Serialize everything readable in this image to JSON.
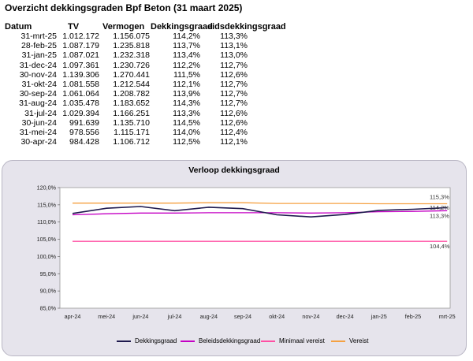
{
  "sheet": {
    "title": "Overzicht dekkingsgraden Bpf Beton (31 maart 2025)",
    "headers": [
      "Datum",
      "TV",
      "Vermogen",
      "Dekkingsgraad",
      "eidsdekkingsgraad"
    ],
    "rows": [
      [
        "31-mrt-25",
        "1.012.172",
        "1.156.075",
        "114,2%",
        "113,3%"
      ],
      [
        "28-feb-25",
        "1.087.179",
        "1.235.818",
        "113,7%",
        "113,1%"
      ],
      [
        "31-jan-25",
        "1.087.021",
        "1.232.318",
        "113,4%",
        "113,0%"
      ],
      [
        "31-dec-24",
        "1.097.361",
        "1.230.726",
        "112,2%",
        "112,7%"
      ],
      [
        "30-nov-24",
        "1.139.306",
        "1.270.441",
        "111,5%",
        "112,6%"
      ],
      [
        "31-okt-24",
        "1.081.558",
        "1.212.544",
        "112,1%",
        "112,7%"
      ],
      [
        "30-sep-24",
        "1.061.064",
        "1.208.782",
        "113,9%",
        "112,7%"
      ],
      [
        "31-aug-24",
        "1.035.478",
        "1.183.652",
        "114,3%",
        "112,7%"
      ],
      [
        "31-jul-24",
        "1.029.394",
        "1.166.251",
        "113,3%",
        "112,6%"
      ],
      [
        "30-jun-24",
        "991.639",
        "1.135.710",
        "114,5%",
        "112,6%"
      ],
      [
        "31-mei-24",
        "978.556",
        "1.115.171",
        "114,0%",
        "112,4%"
      ],
      [
        "30-apr-24",
        "984.428",
        "1.106.712",
        "112,5%",
        "112,1%"
      ]
    ]
  },
  "chart_data": {
    "type": "line",
    "title": "Verloop dekkingsgraad",
    "categories": [
      "apr-24",
      "mei-24",
      "jun-24",
      "jul-24",
      "aug-24",
      "sep-24",
      "okt-24",
      "nov-24",
      "dec-24",
      "jan-25",
      "feb-25",
      "mrt-25"
    ],
    "ylim": [
      85,
      120
    ],
    "ytick_labels": [
      "85,0%",
      "90,0%",
      "95,0%",
      "100,0%",
      "105,0%",
      "110,0%",
      "115,0%",
      "120,0%"
    ],
    "grid": false,
    "legend_position": "bottom",
    "series": [
      {
        "name": "Dekkingsgraad",
        "color": "#1f1a4e",
        "values": [
          112.5,
          114.0,
          114.5,
          113.3,
          114.3,
          113.9,
          112.1,
          111.5,
          112.2,
          113.4,
          113.7,
          114.2
        ]
      },
      {
        "name": "Beleidsdekkingsgraad",
        "color": "#c400c4",
        "values": [
          112.1,
          112.4,
          112.6,
          112.6,
          112.7,
          112.7,
          112.7,
          112.6,
          112.7,
          113.0,
          113.1,
          113.3
        ]
      },
      {
        "name": "Minimaal vereist",
        "color": "#ff4fa3",
        "values": [
          104.4,
          104.4,
          104.4,
          104.4,
          104.4,
          104.4,
          104.4,
          104.4,
          104.4,
          104.4,
          104.4,
          104.4
        ]
      },
      {
        "name": "Vereist",
        "color": "#f5a142",
        "values": [
          115.5,
          115.5,
          115.5,
          115.5,
          115.6,
          115.6,
          115.4,
          115.4,
          115.4,
          115.3,
          115.3,
          115.3
        ]
      }
    ],
    "annotations": [
      "115,3%",
      "114,2%",
      "113,3%",
      "104,4%"
    ]
  }
}
